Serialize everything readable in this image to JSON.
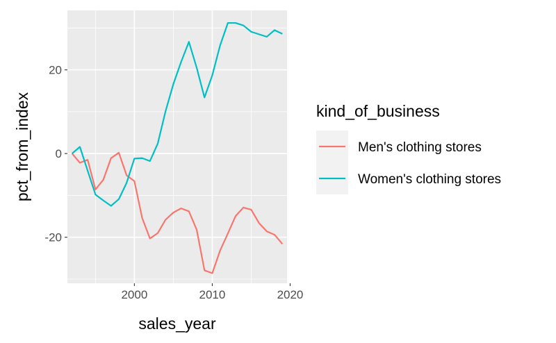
{
  "chart_data": {
    "type": "line",
    "xlabel": "sales_year",
    "ylabel": "pct_from_index",
    "xlim": [
      1991.4,
      2019.6
    ],
    "ylim": [
      -31,
      34.2
    ],
    "x_ticks": [
      2000,
      2010,
      2020
    ],
    "x_tick_labels": [
      "2000",
      "2010",
      "2020"
    ],
    "y_ticks": [
      -20,
      0,
      20
    ],
    "y_tick_labels": [
      "-20",
      "0",
      "20"
    ],
    "x_minor_ticks": [
      1995,
      2005,
      2015
    ],
    "y_minor_ticks": [
      -30,
      -10,
      10,
      30
    ],
    "grid": true,
    "legend_position": "right",
    "legend_title": "kind_of_business",
    "series": [
      {
        "name": "Men's clothing stores",
        "color": "#F8766D",
        "x": [
          1992,
          1993,
          1994,
          1995,
          1996,
          1997,
          1998,
          1999,
          2000,
          2001,
          2002,
          2003,
          2004,
          2005,
          2006,
          2007,
          2008,
          2009,
          2010,
          2011,
          2012,
          2013,
          2014,
          2015,
          2016,
          2017,
          2018,
          2019
        ],
        "values": [
          0,
          -2.2,
          -1.5,
          -8.6,
          -6.3,
          -1.1,
          0.2,
          -5.2,
          -6.6,
          -15.4,
          -20.3,
          -19.0,
          -15.8,
          -14.1,
          -13.1,
          -13.8,
          -18.2,
          -27.9,
          -28.6,
          -23.2,
          -19.1,
          -14.9,
          -12.9,
          -13.4,
          -16.6,
          -18.6,
          -19.4,
          -21.6
        ]
      },
      {
        "name": "Women's clothing stores",
        "color": "#00BFC4",
        "x": [
          1992,
          1993,
          1994,
          1995,
          1996,
          1997,
          1998,
          1999,
          2000,
          2001,
          2002,
          2003,
          2004,
          2005,
          2006,
          2007,
          2008,
          2009,
          2010,
          2011,
          2012,
          2013,
          2014,
          2015,
          2016,
          2017,
          2018,
          2019
        ],
        "values": [
          0,
          1.6,
          -4.1,
          -9.8,
          -11.2,
          -12.5,
          -10.9,
          -7.0,
          -1.2,
          -1.1,
          -1.8,
          2.4,
          10.1,
          16.6,
          21.9,
          26.7,
          20.5,
          13.4,
          18.7,
          25.8,
          31.2,
          31.2,
          30.6,
          29.1,
          28.5,
          27.9,
          29.5,
          28.6
        ]
      }
    ]
  }
}
